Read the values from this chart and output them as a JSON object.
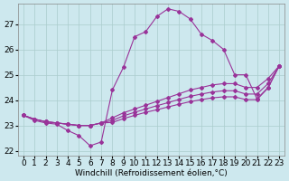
{
  "xlabel": "Windchill (Refroidissement éolien,°C)",
  "bg_color": "#cde8ee",
  "line_color": "#993399",
  "ylim": [
    21.8,
    27.8
  ],
  "xlim": [
    -0.5,
    23.5
  ],
  "yticks": [
    22,
    23,
    24,
    25,
    26,
    27
  ],
  "xticks": [
    0,
    1,
    2,
    3,
    4,
    5,
    6,
    7,
    8,
    9,
    10,
    11,
    12,
    13,
    14,
    15,
    16,
    17,
    18,
    19,
    20,
    21,
    22,
    23
  ],
  "curve1_x": [
    0,
    1,
    2,
    3,
    4,
    5,
    6,
    7,
    8,
    9,
    10,
    11,
    12,
    13,
    14,
    15,
    16,
    17,
    18,
    19,
    20,
    21,
    22,
    23
  ],
  "curve1_y": [
    23.4,
    23.2,
    23.1,
    23.05,
    22.8,
    22.6,
    22.2,
    22.35,
    24.4,
    25.3,
    26.5,
    26.7,
    27.3,
    27.6,
    27.5,
    27.2,
    26.6,
    26.35,
    26.0,
    25.0,
    25.0,
    24.05,
    24.5,
    25.35
  ],
  "curve2_x": [
    0,
    1,
    2,
    3,
    4,
    5,
    6,
    7,
    8,
    9,
    10,
    11,
    12,
    13,
    14,
    15,
    16,
    17,
    18,
    19,
    20,
    21,
    22,
    23
  ],
  "curve2_y": [
    23.4,
    23.25,
    23.15,
    23.1,
    23.05,
    23.0,
    23.0,
    23.1,
    23.3,
    23.5,
    23.65,
    23.8,
    23.95,
    24.1,
    24.25,
    24.4,
    24.5,
    24.6,
    24.65,
    24.65,
    24.5,
    24.5,
    24.85,
    25.35
  ],
  "curve3_x": [
    0,
    1,
    2,
    3,
    4,
    5,
    6,
    7,
    8,
    9,
    10,
    11,
    12,
    13,
    14,
    15,
    16,
    17,
    18,
    19,
    20,
    21,
    22,
    23
  ],
  "curve3_y": [
    23.4,
    23.25,
    23.15,
    23.1,
    23.05,
    23.0,
    23.0,
    23.1,
    23.2,
    23.38,
    23.52,
    23.65,
    23.78,
    23.9,
    24.03,
    24.15,
    24.24,
    24.32,
    24.37,
    24.37,
    24.24,
    24.24,
    24.65,
    25.35
  ],
  "curve4_x": [
    0,
    1,
    2,
    3,
    4,
    5,
    6,
    7,
    8,
    9,
    10,
    11,
    12,
    13,
    14,
    15,
    16,
    17,
    18,
    19,
    20,
    21,
    22,
    23
  ],
  "curve4_y": [
    23.4,
    23.25,
    23.15,
    23.1,
    23.05,
    23.0,
    23.0,
    23.1,
    23.12,
    23.27,
    23.4,
    23.52,
    23.62,
    23.73,
    23.84,
    23.94,
    24.02,
    24.09,
    24.13,
    24.13,
    24.02,
    24.02,
    24.48,
    25.35
  ],
  "grid_color": "#aacccc",
  "tick_fontsize": 6.5,
  "label_fontsize": 6.5
}
